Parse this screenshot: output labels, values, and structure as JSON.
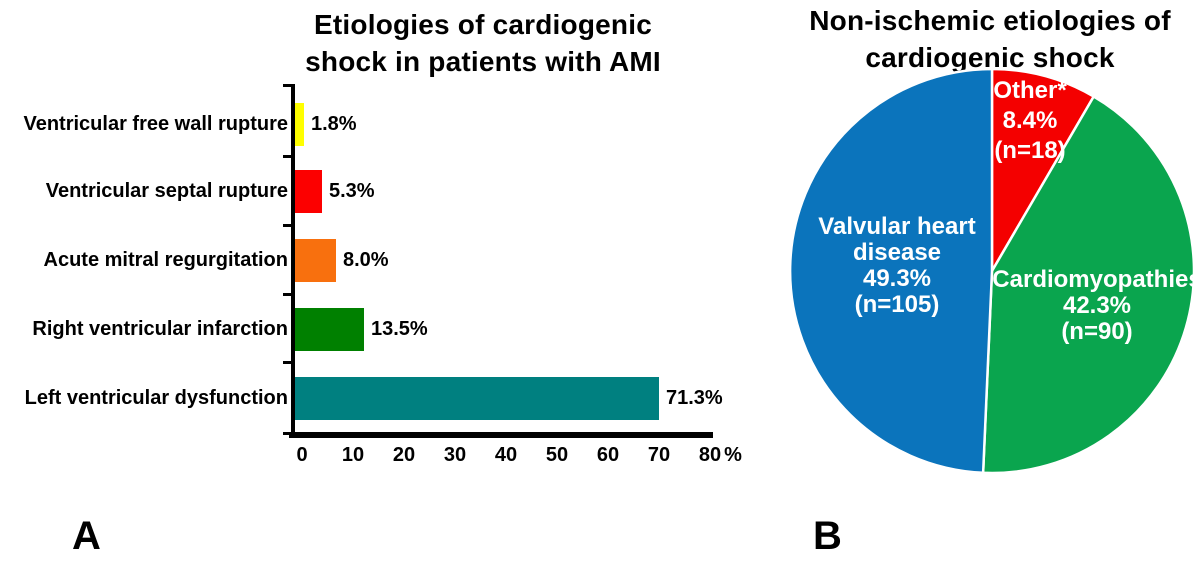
{
  "panel_labels": {
    "a": "A",
    "b": "B"
  },
  "chart_data": [
    {
      "type": "bar",
      "panel": "A",
      "title": "Etiologies of cardiogenic\nshock in patients with AMI",
      "orientation": "horizontal",
      "categories": [
        "Ventricular free wall rupture",
        "Ventricular septal rupture",
        "Acute mitral regurgitation",
        "Right ventricular infarction",
        "Left ventricular dysfunction"
      ],
      "values": [
        1.8,
        5.3,
        8.0,
        13.5,
        71.3
      ],
      "value_labels": [
        "1.8%",
        "5.3%",
        "8.0%",
        "13.5%",
        "71.3%"
      ],
      "bar_colors": [
        "#ffff00",
        "#fc0000",
        "#f8700e",
        "#008000",
        "#008080"
      ],
      "xlim": [
        0,
        80
      ],
      "xticks": [
        "0",
        "10",
        "20",
        "30",
        "40",
        "50",
        "60",
        "70",
        "80"
      ],
      "x_unit": "%",
      "axis_color": "#000000",
      "grid": false
    },
    {
      "type": "pie",
      "panel": "B",
      "title": "Non-ischemic etiologies of\ncardiogenic shock",
      "start_angle_deg": 0,
      "direction": "clockwise",
      "separator_color": "#ffffff",
      "slices": [
        {
          "name": "Other*",
          "pct": 8.4,
          "n": 18,
          "color": "#f40000",
          "display": "Other*\n8.4%\n(n=18)"
        },
        {
          "name": "Cardiomyopathies",
          "pct": 42.3,
          "n": 90,
          "color": "#0aa54e",
          "display": "Cardiomyopathies\n42.3%\n(n=90)"
        },
        {
          "name": "Valvular heart disease",
          "pct": 49.3,
          "n": 105,
          "color": "#0b74bc",
          "display": "Valvular heart\ndisease\n49.3%\n(n=105)"
        }
      ]
    }
  ]
}
